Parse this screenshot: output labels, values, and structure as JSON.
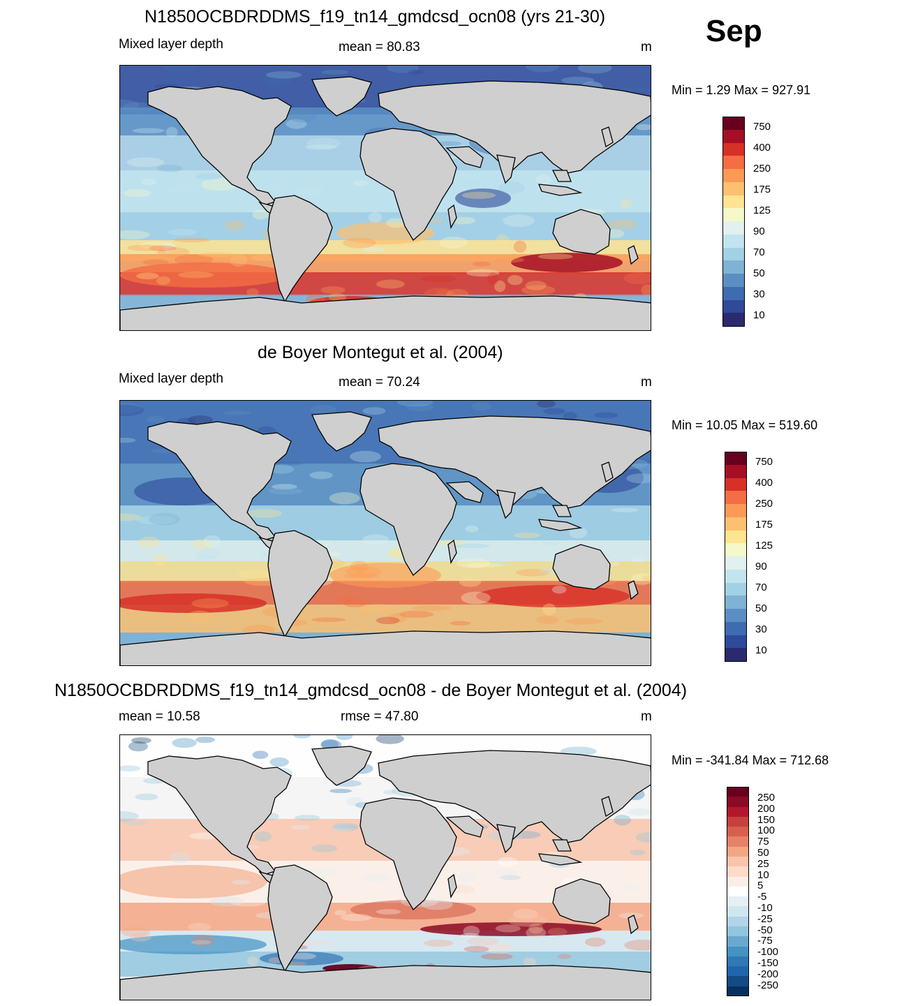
{
  "month": "Sep",
  "panels": [
    {
      "title": "N1850OCBDRDDMS_f19_tn14_gmdcsd_ocn08 (yrs 21-30)",
      "left_label": "Mixed layer depth",
      "center_label": "mean =  80.83",
      "units": "m",
      "minmax": "Min =    1.29 Max = 927.91",
      "colorbar_labels": [
        "750",
        "400",
        "250",
        "175",
        "125",
        "90",
        "70",
        "50",
        "30",
        "10"
      ],
      "colorbar_colors": [
        "#67001f",
        "#a50f26",
        "#d73027",
        "#f46d43",
        "#fc9a55",
        "#fdc070",
        "#fee391",
        "#f5f8c8",
        "#e0f1ef",
        "#c2e4ef",
        "#a2d0e5",
        "#7fb2d5",
        "#5b8fc3",
        "#3f6bb0",
        "#2f4a9a",
        "#2a2a6e"
      ],
      "fields": {
        "polar_north": "dark-blue",
        "tropics": "light-blue",
        "south_pacific": "orange-red",
        "south_indian": "red",
        "south_atlantic": "yellow-orange",
        "antarctic": "light-blue"
      }
    },
    {
      "title": "de Boyer Montegut et al. (2004)",
      "left_label": "Mixed layer depth",
      "center_label": "mean =  70.24",
      "units": "m",
      "minmax": "Min =  10.05 Max = 519.60",
      "colorbar_labels": [
        "750",
        "400",
        "250",
        "175",
        "125",
        "90",
        "70",
        "50",
        "30",
        "10"
      ],
      "colorbar_colors": [
        "#67001f",
        "#a50f26",
        "#d73027",
        "#f46d43",
        "#fc9a55",
        "#fdc070",
        "#fee391",
        "#f5f8c8",
        "#e0f1ef",
        "#c2e4ef",
        "#a2d0e5",
        "#7fb2d5",
        "#5b8fc3",
        "#3f6bb0",
        "#2f4a9a",
        "#2a2a6e"
      ],
      "fields": {
        "polar_north": "blue",
        "tropics": "blue",
        "south_pacific": "red",
        "south_indian": "red",
        "south_atlantic": "yellow",
        "antarctic": "yellow"
      }
    },
    {
      "title": "N1850OCBDRDDMS_f19_tn14_gmdcsd_ocn08 - de Boyer Montegut et al. (2004)",
      "left_label": "mean =  10.58",
      "center_label": "rmse =  47.80",
      "units": "m",
      "minmax": "Min = -341.84 Max = 712.68",
      "colorbar_labels": [
        "250",
        "200",
        "150",
        "100",
        "75",
        "50",
        "25",
        "10",
        "5",
        "-5",
        "-10",
        "-25",
        "-50",
        "-75",
        "-100",
        "-150",
        "-200",
        "-250"
      ],
      "colorbar_colors": [
        "#67001f",
        "#8b0a25",
        "#b2182b",
        "#c6403d",
        "#d6604d",
        "#e58268",
        "#f4a582",
        "#f8c4ab",
        "#fddbc7",
        "#fbeee6",
        "#ffffff",
        "#e6eff5",
        "#d1e5f0",
        "#b3d4e8",
        "#92c5de",
        "#6aa9cf",
        "#4393c3",
        "#2f79b5",
        "#2166ac",
        "#134b85",
        "#053061"
      ],
      "fields": {
        "polar_north": "white",
        "tropics": "light-red",
        "south_pacific": "mixed",
        "south_indian": "dark-red",
        "south_atlantic": "red",
        "antarctic": "blue"
      }
    }
  ]
}
